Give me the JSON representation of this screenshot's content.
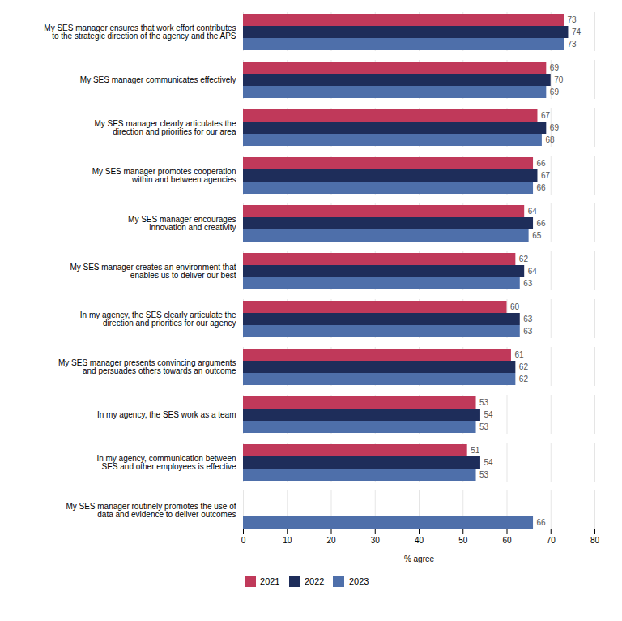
{
  "chart_data": {
    "type": "bar",
    "orientation": "horizontal",
    "categories": [
      "My SES manager ensures that work effort contributes\nto the strategic direction of the agency and the APS",
      "My SES manager communicates effectively",
      "My SES manager clearly articulates the\ndirection and priorities for our area",
      "My SES manager promotes cooperation\nwithin and between agencies",
      "My SES manager encourages\ninnovation and creativity",
      "My SES manager creates an environment that\nenables us to deliver our best",
      "In my agency, the SES clearly articulate the\ndirection and priorities for our agency",
      "My SES manager presents convincing arguments\nand persuades others towards an outcome",
      "In my agency, the SES work as a team",
      "In my agency, communication between\nSES and other employees is effective",
      "My SES manager routinely promotes the use of\ndata and evidence to deliver outcomes"
    ],
    "series": [
      {
        "name": "2021",
        "color": "#c0395a",
        "values": [
          73,
          69,
          67,
          66,
          64,
          62,
          60,
          61,
          53,
          51,
          null
        ]
      },
      {
        "name": "2022",
        "color": "#1e2d5a",
        "values": [
          74,
          70,
          69,
          67,
          66,
          64,
          63,
          62,
          54,
          54,
          null
        ]
      },
      {
        "name": "2023",
        "color": "#4e6faa",
        "values": [
          73,
          69,
          68,
          66,
          65,
          63,
          63,
          62,
          53,
          53,
          66
        ]
      }
    ],
    "xlabel": "% agree",
    "xlim": [
      0,
      80
    ],
    "xticks": [
      0,
      10,
      20,
      30,
      40,
      50,
      60,
      70,
      80
    ],
    "grid": true,
    "legend": "bottom",
    "data_labels": true
  }
}
